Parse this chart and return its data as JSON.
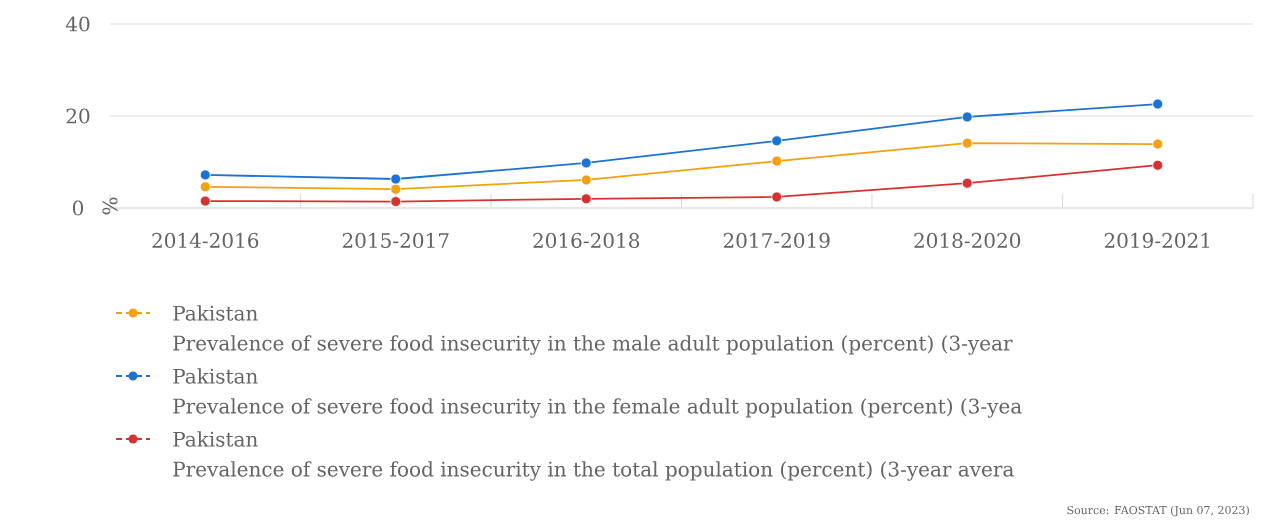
{
  "chart_data": {
    "type": "line",
    "categories": [
      "2014-2016",
      "2015-2017",
      "2016-2018",
      "2017-2019",
      "2018-2020",
      "2019-2021"
    ],
    "series": [
      {
        "name": "Pakistan",
        "color": "#f5a00f",
        "values": [
          4.6,
          4.1,
          6.1,
          10.2,
          14.1,
          13.9
        ]
      },
      {
        "name": "Pakistan",
        "color": "#1a73d6",
        "values": [
          7.2,
          6.3,
          9.8,
          14.6,
          19.8,
          22.6
        ]
      },
      {
        "name": "Pakistan",
        "color": "#d93030",
        "values": [
          1.5,
          1.4,
          2.0,
          2.4,
          5.4,
          9.3
        ]
      }
    ],
    "ylabel": "%",
    "ylim": [
      0,
      40
    ],
    "yticks": [
      0,
      20,
      40
    ],
    "grid": "y",
    "marker": "circle",
    "line_style": "solid",
    "legend": "bottom",
    "annotations": [
      "Prevalence of severe food insecurity in the male adult population (percent) (3-year",
      "Prevalence of severe food insecurity in the female adult population (percent) (3-yea",
      "Prevalence of severe food insecurity in the total population (percent) (3-year avera",
      "Source: FAOSTAT (Jun 07, 2023)"
    ]
  }
}
